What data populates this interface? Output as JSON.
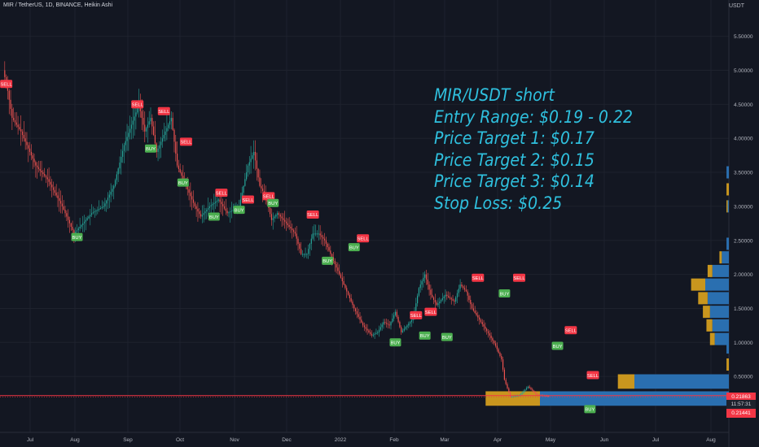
{
  "header": {
    "title": "MIR / TetherUS, 1D, BINANCE, Heikin Ashi"
  },
  "price_axis": {
    "unit": "USDT",
    "last_price": "0.21863",
    "countdown": "11:57:31",
    "secondary_price": "0.21441"
  },
  "annotation": {
    "lines": [
      "MIR/USDT short",
      "Entry Range: $0.19 - 0.22",
      "Price Target 1: $0.17",
      "Price Target 2: $0.15",
      "Price Target 3: $0.14",
      "Stop Loss: $0.25"
    ]
  },
  "colors": {
    "background": "#131722",
    "up": "#26a69a",
    "down": "#ef5350",
    "annotation": "#2fc0de",
    "price_line": "#f23645",
    "buy_label": "#4caf50",
    "sell_label": "#f23645",
    "volume_profile_blue": "#2a6fb0",
    "volume_profile_gold": "#c9961e"
  },
  "chart_data": {
    "type": "line",
    "series_style": "heikin-ashi candles",
    "yaxis": {
      "ticks": [
        0.5,
        1.0,
        1.5,
        2.0,
        2.5,
        3.0,
        3.5,
        4.0,
        4.5,
        5.0,
        5.5
      ],
      "tick_labels": [
        "0.50000",
        "1.00000",
        "1.50000",
        "2.00000",
        "2.50000",
        "3.00000",
        "3.50000",
        "4.00000",
        "4.50000",
        "5.00000",
        "5.50000"
      ],
      "ylim": [
        -0.3,
        5.85
      ]
    },
    "xaxis": {
      "tick_labels": [
        "Jul",
        "Aug",
        "Sep",
        "Oct",
        "Nov",
        "Dec",
        "2022",
        "Feb",
        "Mar",
        "Apr",
        "May",
        "Jun",
        "Jul",
        "Aug"
      ]
    },
    "price_path": [
      [
        0,
        5.0
      ],
      [
        3,
        4.7
      ],
      [
        6,
        4.3
      ],
      [
        12,
        4.1
      ],
      [
        22,
        3.6
      ],
      [
        30,
        3.4
      ],
      [
        40,
        3.0
      ],
      [
        48,
        2.6
      ],
      [
        52,
        2.7
      ],
      [
        60,
        2.9
      ],
      [
        68,
        3.0
      ],
      [
        75,
        3.3
      ],
      [
        82,
        3.9
      ],
      [
        87,
        4.2
      ],
      [
        92,
        4.5
      ],
      [
        96,
        4.1
      ],
      [
        100,
        4.3
      ],
      [
        104,
        3.8
      ],
      [
        110,
        4.1
      ],
      [
        114,
        4.3
      ],
      [
        118,
        3.6
      ],
      [
        124,
        3.3
      ],
      [
        130,
        3.0
      ],
      [
        134,
        2.85
      ],
      [
        140,
        3.0
      ],
      [
        146,
        3.1
      ],
      [
        152,
        2.9
      ],
      [
        160,
        3.0
      ],
      [
        166,
        3.6
      ],
      [
        170,
        3.8
      ],
      [
        174,
        3.3
      ],
      [
        178,
        3.15
      ],
      [
        182,
        2.8
      ],
      [
        186,
        2.9
      ],
      [
        192,
        2.75
      ],
      [
        198,
        2.6
      ],
      [
        202,
        2.3
      ],
      [
        206,
        2.3
      ],
      [
        210,
        2.6
      ],
      [
        214,
        2.6
      ],
      [
        218,
        2.5
      ],
      [
        222,
        2.3
      ],
      [
        226,
        2.1
      ],
      [
        232,
        1.8
      ],
      [
        238,
        1.5
      ],
      [
        244,
        1.25
      ],
      [
        250,
        1.1
      ],
      [
        254,
        1.15
      ],
      [
        258,
        1.3
      ],
      [
        262,
        1.25
      ],
      [
        266,
        1.45
      ],
      [
        270,
        1.15
      ],
      [
        274,
        1.25
      ],
      [
        278,
        1.35
      ],
      [
        282,
        1.8
      ],
      [
        286,
        2.0
      ],
      [
        290,
        1.7
      ],
      [
        294,
        1.55
      ],
      [
        300,
        1.7
      ],
      [
        306,
        1.6
      ],
      [
        310,
        1.85
      ],
      [
        314,
        1.75
      ],
      [
        318,
        1.5
      ],
      [
        324,
        1.3
      ],
      [
        330,
        1.1
      ],
      [
        334,
        0.95
      ],
      [
        338,
        0.75
      ],
      [
        340,
        0.45
      ],
      [
        344,
        0.2
      ],
      [
        350,
        0.22
      ],
      [
        356,
        0.35
      ],
      [
        362,
        0.23
      ],
      [
        366,
        0.22
      ],
      [
        370,
        0.21
      ]
    ],
    "signals": [
      {
        "label": "SELL",
        "x": 2,
        "y": 4.8
      },
      {
        "label": "BUY",
        "x": 50,
        "y": 2.55
      },
      {
        "label": "SELL",
        "x": 91,
        "y": 4.5
      },
      {
        "label": "BUY",
        "x": 100,
        "y": 3.85
      },
      {
        "label": "SELL",
        "x": 109,
        "y": 4.4
      },
      {
        "label": "SELL",
        "x": 124,
        "y": 3.95
      },
      {
        "label": "BUY",
        "x": 122,
        "y": 3.35
      },
      {
        "label": "SELL",
        "x": 148,
        "y": 3.2
      },
      {
        "label": "BUY",
        "x": 143,
        "y": 2.85
      },
      {
        "label": "BUY",
        "x": 160,
        "y": 2.95
      },
      {
        "label": "SELL",
        "x": 166,
        "y": 3.1
      },
      {
        "label": "SELL",
        "x": 180,
        "y": 3.15
      },
      {
        "label": "BUY",
        "x": 183,
        "y": 3.05
      },
      {
        "label": "SELL",
        "x": 210,
        "y": 2.88
      },
      {
        "label": "BUY",
        "x": 220,
        "y": 2.2
      },
      {
        "label": "BUY",
        "x": 238,
        "y": 2.4
      },
      {
        "label": "SELL",
        "x": 244,
        "y": 2.53
      },
      {
        "label": "BUY",
        "x": 266,
        "y": 1.0
      },
      {
        "label": "SELL",
        "x": 280,
        "y": 1.4
      },
      {
        "label": "SELL",
        "x": 290,
        "y": 1.45
      },
      {
        "label": "BUY",
        "x": 286,
        "y": 1.1
      },
      {
        "label": "BUY",
        "x": 301,
        "y": 1.08
      },
      {
        "label": "SELL",
        "x": 322,
        "y": 1.95
      },
      {
        "label": "BUY",
        "x": 340,
        "y": 1.72
      },
      {
        "label": "SELL",
        "x": 350,
        "y": 1.95
      },
      {
        "label": "SELL",
        "x": 385,
        "y": 1.18
      },
      {
        "label": "BUY",
        "x": 376,
        "y": 0.95
      },
      {
        "label": "SELL",
        "x": 400,
        "y": 0.52
      },
      {
        "label": "BUY",
        "x": 398,
        "y": 0.02
      }
    ],
    "volume_profile": [
      {
        "price": 0.175,
        "blue": 0.8,
        "gold": 0.23
      },
      {
        "price": 0.425,
        "blue": 0.4,
        "gold": 0.07
      },
      {
        "price": 0.675,
        "blue": 0.0,
        "gold": 0.01
      },
      {
        "price": 0.925,
        "blue": 0.01,
        "gold": 0.0
      },
      {
        "price": 1.05,
        "blue": 0.06,
        "gold": 0.02
      },
      {
        "price": 1.25,
        "blue": 0.07,
        "gold": 0.025
      },
      {
        "price": 1.45,
        "blue": 0.08,
        "gold": 0.03
      },
      {
        "price": 1.65,
        "blue": 0.09,
        "gold": 0.04
      },
      {
        "price": 1.85,
        "blue": 0.1,
        "gold": 0.06
      },
      {
        "price": 2.05,
        "blue": 0.07,
        "gold": 0.02
      },
      {
        "price": 2.25,
        "blue": 0.03,
        "gold": 0.01
      },
      {
        "price": 2.45,
        "blue": 0.01,
        "gold": 0.0
      },
      {
        "price": 3.0,
        "blue": 0.005,
        "gold": 0.005
      },
      {
        "price": 3.25,
        "blue": 0.0,
        "gold": 0.01
      },
      {
        "price": 3.5,
        "blue": 0.01,
        "gold": 0.0
      }
    ],
    "price_lines": [
      0.21863,
      0.21441
    ]
  }
}
